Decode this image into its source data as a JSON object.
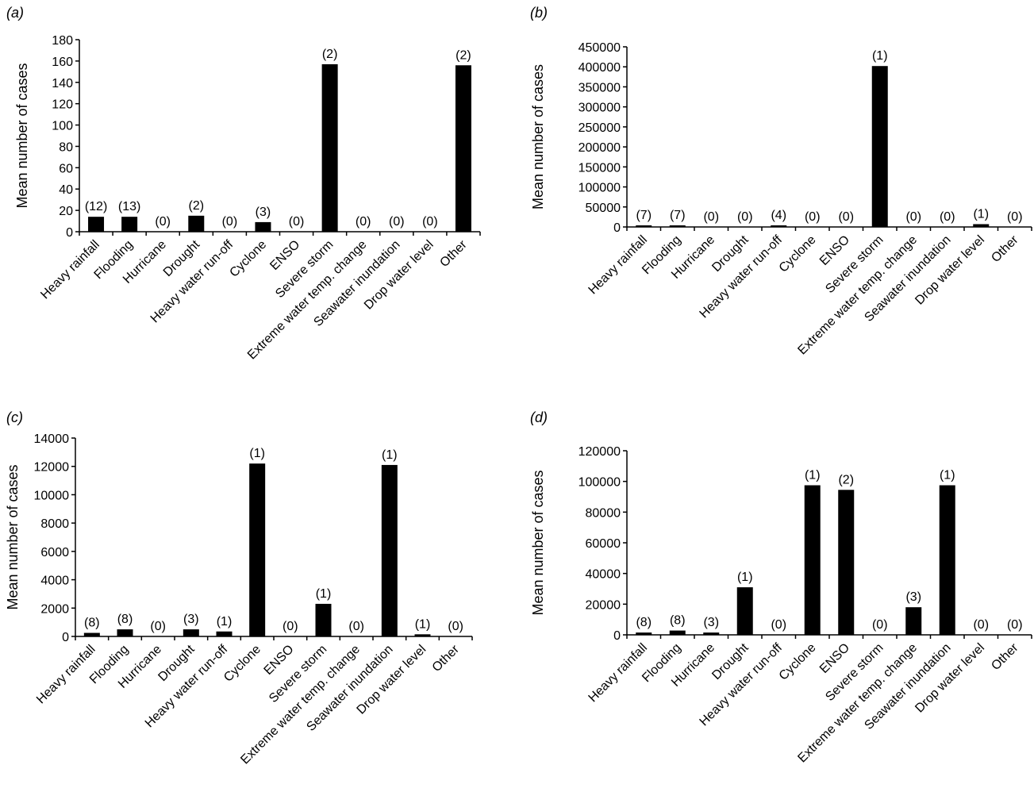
{
  "colors": {
    "bar": "#000000",
    "axis": "#000000",
    "text": "#000000"
  },
  "chart_data": [
    {
      "type": "bar",
      "panel_label": "(a)",
      "title": "",
      "xlabel": "",
      "ylabel": "Mean number of cases",
      "ylim": [
        0,
        180
      ],
      "yticks": [
        0,
        20,
        40,
        60,
        80,
        100,
        120,
        140,
        160,
        180
      ],
      "ytick_labels": [
        "0",
        "20",
        "40",
        "60",
        "80",
        "100",
        "120",
        "140",
        "160",
        "180"
      ],
      "categories": [
        "Heavy rainfall",
        "Flooding",
        "Hurricane",
        "Drought",
        "Heavy water run-off",
        "Cyclone",
        "ENSO",
        "Severe storm",
        "Extreme water temp. change",
        "Seawater inundation",
        "Drop water level",
        "Other"
      ],
      "values": [
        14,
        14,
        0,
        15,
        0,
        9,
        0,
        157,
        0,
        0,
        0,
        156
      ],
      "counts": [
        "(12)",
        "(13)",
        "(0)",
        "(2)",
        "(0)",
        "(3)",
        "(0)",
        "(2)",
        "(0)",
        "(0)",
        "(0)",
        "(2)"
      ]
    },
    {
      "type": "bar",
      "panel_label": "(b)",
      "title": "",
      "xlabel": "",
      "ylabel": "Mean number of cases",
      "ylim": [
        0,
        450000
      ],
      "yticks": [
        0,
        50000,
        100000,
        150000,
        200000,
        250000,
        300000,
        350000,
        400000,
        450000
      ],
      "ytick_labels": [
        "0",
        "50000",
        "100000",
        "150000",
        "200000",
        "250000",
        "300000",
        "350000",
        "400000",
        "450000"
      ],
      "categories": [
        "Heavy rainfall",
        "Flooding",
        "Hurricane",
        "Drought",
        "Heavy water run-off",
        "Cyclone",
        "ENSO",
        "Severe storm",
        "Extreme water temp. change",
        "Seawater inundation",
        "Drop water level",
        "Other"
      ],
      "values": [
        4000,
        4000,
        0,
        0,
        4000,
        0,
        0,
        402000,
        0,
        0,
        7000,
        0
      ],
      "counts": [
        "(7)",
        "(7)",
        "(0)",
        "(0)",
        "(4)",
        "(0)",
        "(0)",
        "(1)",
        "(0)",
        "(0)",
        "(1)",
        "(0)"
      ]
    },
    {
      "type": "bar",
      "panel_label": "(c)",
      "title": "",
      "xlabel": "",
      "ylabel": "Mean number of cases",
      "ylim": [
        0,
        14000
      ],
      "yticks": [
        0,
        2000,
        4000,
        6000,
        8000,
        10000,
        12000,
        14000
      ],
      "ytick_labels": [
        "0",
        "2000",
        "4000",
        "6000",
        "8000",
        "10000",
        "12000",
        "14000"
      ],
      "categories": [
        "Heavy rainfall",
        "Flooding",
        "Hurricane",
        "Drought",
        "Heavy water run-off",
        "Cyclone",
        "ENSO",
        "Severe storm",
        "Extreme water temp. change",
        "Seawater inundation",
        "Drop water level",
        "Other"
      ],
      "values": [
        250,
        500,
        0,
        500,
        350,
        12200,
        0,
        2300,
        0,
        12100,
        150,
        0
      ],
      "counts": [
        "(8)",
        "(8)",
        "(0)",
        "(3)",
        "(1)",
        "(1)",
        "(0)",
        "(1)",
        "(0)",
        "(1)",
        "(1)",
        "(0)"
      ]
    },
    {
      "type": "bar",
      "panel_label": "(d)",
      "title": "",
      "xlabel": "",
      "ylabel": "Mean number of cases",
      "ylim": [
        0,
        120000
      ],
      "yticks": [
        0,
        20000,
        40000,
        60000,
        80000,
        100000,
        120000
      ],
      "ytick_labels": [
        "0",
        "20000",
        "40000",
        "60000",
        "80000",
        "100000",
        "120000"
      ],
      "categories": [
        "Heavy rainfall",
        "Flooding",
        "Hurricane",
        "Drought",
        "Heavy water run-off",
        "Cyclone",
        "ENSO",
        "Severe storm",
        "Extreme water temp. change",
        "Seawater inundation",
        "Drop water level",
        "Other"
      ],
      "values": [
        1500,
        2800,
        1500,
        31000,
        0,
        97500,
        94500,
        0,
        18000,
        97500,
        0,
        0
      ],
      "counts": [
        "(8)",
        "(8)",
        "(3)",
        "(1)",
        "(0)",
        "(1)",
        "(2)",
        "(0)",
        "(3)",
        "(1)",
        "(0)",
        "(0)"
      ]
    }
  ]
}
